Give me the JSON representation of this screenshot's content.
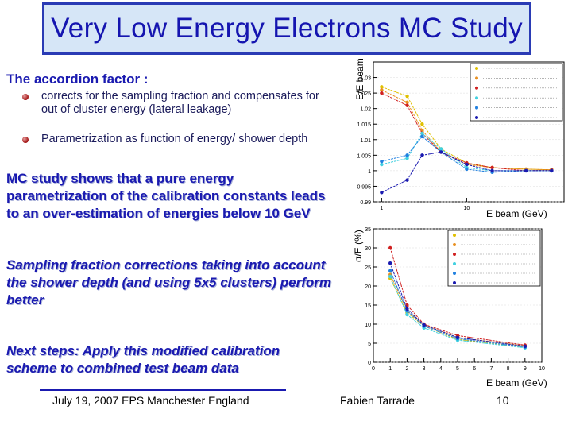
{
  "title": "Very Low Energy Electrons MC Study",
  "accordion": {
    "heading": "The accordion factor :",
    "bullets": [
      "corrects for the sampling fraction and compensates for out of cluster energy (lateral leakage)",
      "Parametrization  as function of energy/ shower depth"
    ]
  },
  "findings": {
    "mc_line1": "MC study shows that a pure energy",
    "mc_line2": "parametrization of the calibration constants leads",
    "mc_line3": "to an over-estimation of energies below 10 GeV",
    "sf_line1": "Sampling fraction corrections taking into account",
    "sf_line2": "the shower depth (and using 5x5 clusters) perform",
    "sf_line3": "better",
    "next_line1": "Next steps: Apply this modified calibration",
    "next_line2": "scheme to combined test beam data"
  },
  "footer": {
    "date": "July 19, 2007  EPS Manchester England",
    "author": "Fabien Tarrade",
    "page": "10"
  },
  "colors": {
    "title": "#1515b0",
    "accent": "#1a1ab0",
    "title_border": "#2a3bb5"
  },
  "chart_data": [
    {
      "type": "line",
      "ylabel": "E/E beam",
      "xlabel": "E beam (GeV)",
      "xscale": "log",
      "ylim": [
        0.99,
        1.035
      ],
      "y_ticks": [
        "0.99",
        "0.995",
        "1",
        "1.005",
        "1.01",
        "1.015",
        "1.02",
        "1.025",
        "1.03"
      ],
      "x_ticks": [
        "1",
        "10"
      ],
      "x": [
        1,
        2,
        3,
        5,
        10,
        20,
        50,
        100
      ],
      "series": [
        {
          "color": "#e0c000",
          "values": [
            1.027,
            1.024,
            1.015,
            1.007,
            1.0025,
            1.001,
            1.0005,
            1.0003
          ]
        },
        {
          "color": "#e89020",
          "values": [
            1.026,
            1.022,
            1.013,
            1.006,
            1.002,
            1.001,
            1.0005,
            1.0003
          ]
        },
        {
          "color": "#d02020",
          "values": [
            1.025,
            1.021,
            1.012,
            1.006,
            1.0025,
            1.001,
            1.0,
            1.0002
          ]
        },
        {
          "color": "#40d0e0",
          "values": [
            1.002,
            1.004,
            1.012,
            1.007,
            1.001,
            1.0,
            1.0,
            1.0
          ]
        },
        {
          "color": "#2080e0",
          "values": [
            1.003,
            1.005,
            1.011,
            1.006,
            1.0005,
            0.9995,
            1.0,
            1.0
          ]
        },
        {
          "color": "#1a1ab0",
          "values": [
            0.993,
            0.997,
            1.005,
            1.006,
            1.002,
            1.0,
            1.0,
            1.0
          ]
        }
      ]
    },
    {
      "type": "line",
      "ylabel": "σ/E (%)",
      "xlabel": "E beam (GeV)",
      "xlim": [
        0,
        10
      ],
      "ylim": [
        0,
        35
      ],
      "y_ticks": [
        "0",
        "5",
        "10",
        "15",
        "20",
        "25",
        "30",
        "35"
      ],
      "x_ticks": [
        "0",
        "1",
        "2",
        "3",
        "4",
        "5",
        "6",
        "7",
        "8",
        "9",
        "10"
      ],
      "x": [
        1,
        2,
        3,
        5,
        9
      ],
      "series": [
        {
          "color": "#e0c000",
          "values": [
            22,
            13,
            9.5,
            6,
            4
          ]
        },
        {
          "color": "#e89020",
          "values": [
            23,
            13.5,
            9.8,
            6.5,
            4.3
          ]
        },
        {
          "color": "#d02020",
          "values": [
            30,
            15,
            10,
            7,
            4.5
          ]
        },
        {
          "color": "#40d0e0",
          "values": [
            22.5,
            12.5,
            9,
            5.8,
            3.8
          ]
        },
        {
          "color": "#2080e0",
          "values": [
            24,
            13.5,
            9.5,
            6.2,
            4
          ]
        },
        {
          "color": "#1a1ab0",
          "values": [
            26,
            14,
            9.8,
            6.5,
            4.2
          ]
        }
      ]
    }
  ]
}
